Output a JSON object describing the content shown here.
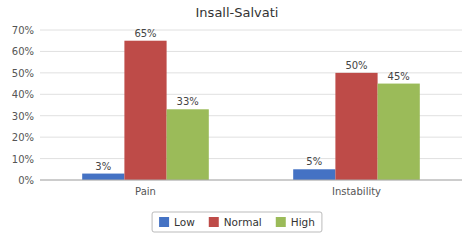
{
  "chart_data": {
    "type": "bar",
    "title": "Insall-Salvati",
    "categories": [
      "Pain",
      "Instability"
    ],
    "series": [
      {
        "name": "Low",
        "color": "#4472C4",
        "values": [
          3,
          5
        ],
        "value_labels": [
          "3%",
          "5%"
        ]
      },
      {
        "name": "Normal",
        "color": "#BE4B48",
        "values": [
          65,
          50
        ],
        "value_labels": [
          "65%",
          "50%"
        ]
      },
      {
        "name": "High",
        "color": "#9BBB59",
        "values": [
          33,
          45
        ],
        "value_labels": [
          "33%",
          "45%"
        ]
      }
    ],
    "ylim": [
      0,
      70
    ],
    "yticks": [
      {
        "value": 0,
        "label": "0%"
      },
      {
        "value": 10,
        "label": "10%"
      },
      {
        "value": 20,
        "label": "20%"
      },
      {
        "value": 30,
        "label": "30%"
      },
      {
        "value": 40,
        "label": "40%"
      },
      {
        "value": 50,
        "label": "50%"
      },
      {
        "value": 60,
        "label": "60%"
      },
      {
        "value": 70,
        "label": "70%"
      }
    ],
    "grid": true,
    "legend": "bottom",
    "data_labels": true
  }
}
